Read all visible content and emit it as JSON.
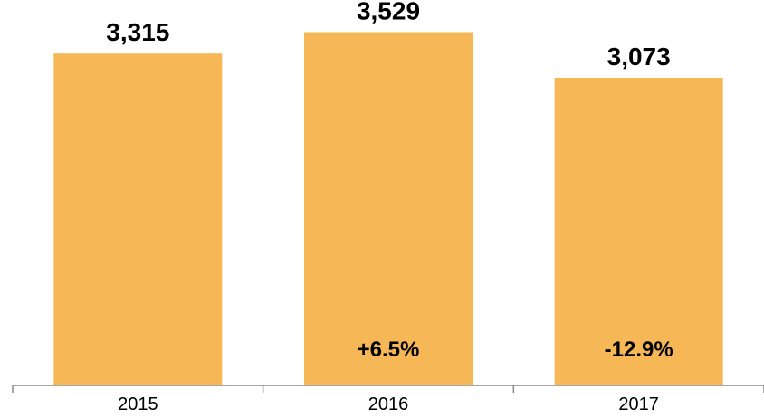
{
  "chart_data": {
    "type": "bar",
    "categories": [
      "2015",
      "2016",
      "2017"
    ],
    "values": [
      3315,
      3529,
      3073
    ],
    "value_labels": [
      "3,315",
      "3,529",
      "3,073"
    ],
    "change_labels": [
      "",
      "+6.5%",
      "-12.9%"
    ],
    "title": "",
    "xlabel": "",
    "ylabel": "",
    "ylim": [
      0,
      3850
    ],
    "grid": false,
    "legend": "none",
    "colors": {
      "bar": "#F6B756",
      "axis": "#888888",
      "text": "#000000"
    }
  }
}
